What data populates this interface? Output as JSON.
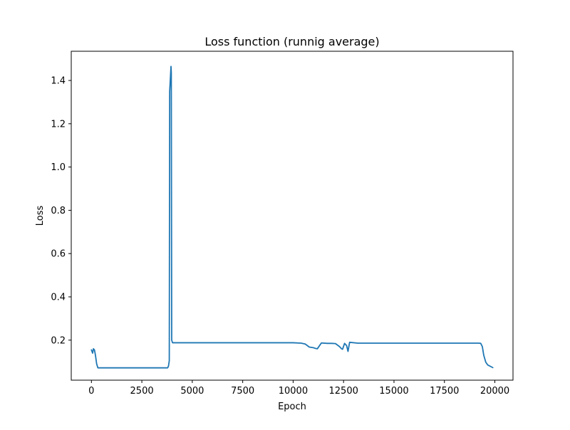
{
  "chart_data": {
    "type": "line",
    "title": "Loss function (runnig average)",
    "xlabel": "Epoch",
    "ylabel": "Loss",
    "xlim": [
      -1000,
      20900
    ],
    "ylim": [
      0.015,
      1.535
    ],
    "grid": false,
    "x_ticks": [
      0,
      2500,
      5000,
      7500,
      10000,
      12500,
      15000,
      17500,
      20000
    ],
    "x_tick_labels": [
      "0",
      "2500",
      "5000",
      "7500",
      "10000",
      "12500",
      "15000",
      "17500",
      "20000"
    ],
    "y_ticks": [
      0.2,
      0.4,
      0.6,
      0.8,
      1.0,
      1.2,
      1.4
    ],
    "y_tick_labels": [
      "0.2",
      "0.4",
      "0.6",
      "0.8",
      "1.0",
      "1.2",
      "1.4"
    ],
    "series": [
      {
        "color": "#1f77b4",
        "x": [
          0,
          60,
          100,
          150,
          200,
          260,
          320,
          500,
          1000,
          2000,
          3000,
          3700,
          3780,
          3820,
          3860,
          3880,
          3920,
          3945,
          3960,
          3980,
          4020,
          5000,
          7500,
          10000,
          10400,
          10600,
          10800,
          11000,
          11100,
          11200,
          11400,
          11700,
          11900,
          12100,
          12300,
          12400,
          12450,
          12550,
          12650,
          12720,
          12800,
          13200,
          15000,
          17500,
          19200,
          19300,
          19380,
          19450,
          19550,
          19650,
          19900
        ],
        "y": [
          0.155,
          0.14,
          0.16,
          0.155,
          0.13,
          0.09,
          0.072,
          0.072,
          0.072,
          0.072,
          0.072,
          0.072,
          0.072,
          0.08,
          0.105,
          1.35,
          1.42,
          1.465,
          1.435,
          0.2,
          0.188,
          0.188,
          0.188,
          0.188,
          0.186,
          0.182,
          0.168,
          0.165,
          0.162,
          0.16,
          0.187,
          0.185,
          0.185,
          0.184,
          0.17,
          0.16,
          0.158,
          0.185,
          0.175,
          0.148,
          0.19,
          0.186,
          0.186,
          0.186,
          0.186,
          0.185,
          0.17,
          0.13,
          0.098,
          0.085,
          0.073
        ]
      }
    ]
  }
}
